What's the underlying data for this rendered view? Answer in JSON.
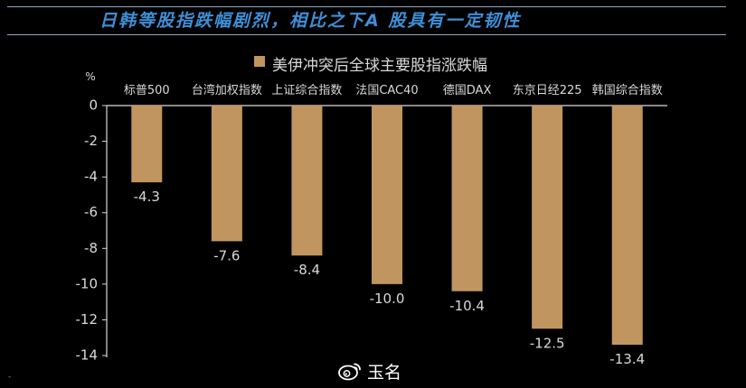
{
  "header": {
    "headline": "日韩等股指跌幅剧烈，相比之下A 股具有一定韧性"
  },
  "colors": {
    "bar": "#C0955F",
    "axis": "#D9D9D9",
    "text": "#D9D9D9",
    "headline": "#3F8FD8",
    "background": "#000000"
  },
  "chart_data": {
    "type": "bar",
    "title": "",
    "legend": {
      "position": "top",
      "entries": [
        "美伊冲突后全球主要股指涨跌幅"
      ]
    },
    "unit_label": "%",
    "xlabel": "",
    "ylabel": "",
    "categories": [
      "标普500",
      "台湾加权指数",
      "上证综合指数",
      "法国CAC40",
      "德国DAX",
      "东京日经225",
      "韩国综合指数"
    ],
    "series": [
      {
        "name": "美伊冲突后全球主要股指涨跌幅",
        "values": [
          -4.3,
          -7.6,
          -8.4,
          -10.0,
          -10.4,
          -12.5,
          -13.4
        ]
      }
    ],
    "data_labels": [
      "-4.3",
      "-7.6",
      "-8.4",
      "-10.0",
      "-10.4",
      "-12.5",
      "-13.4"
    ],
    "ylim": [
      -14,
      0
    ],
    "yticks": [
      0,
      -2,
      -4,
      -6,
      -8,
      -10,
      -12,
      -14
    ],
    "x_axis_position": "top",
    "grid": false
  },
  "watermark": {
    "text": "玉名",
    "icon": "weibo-icon"
  },
  "corner_mark": "-"
}
